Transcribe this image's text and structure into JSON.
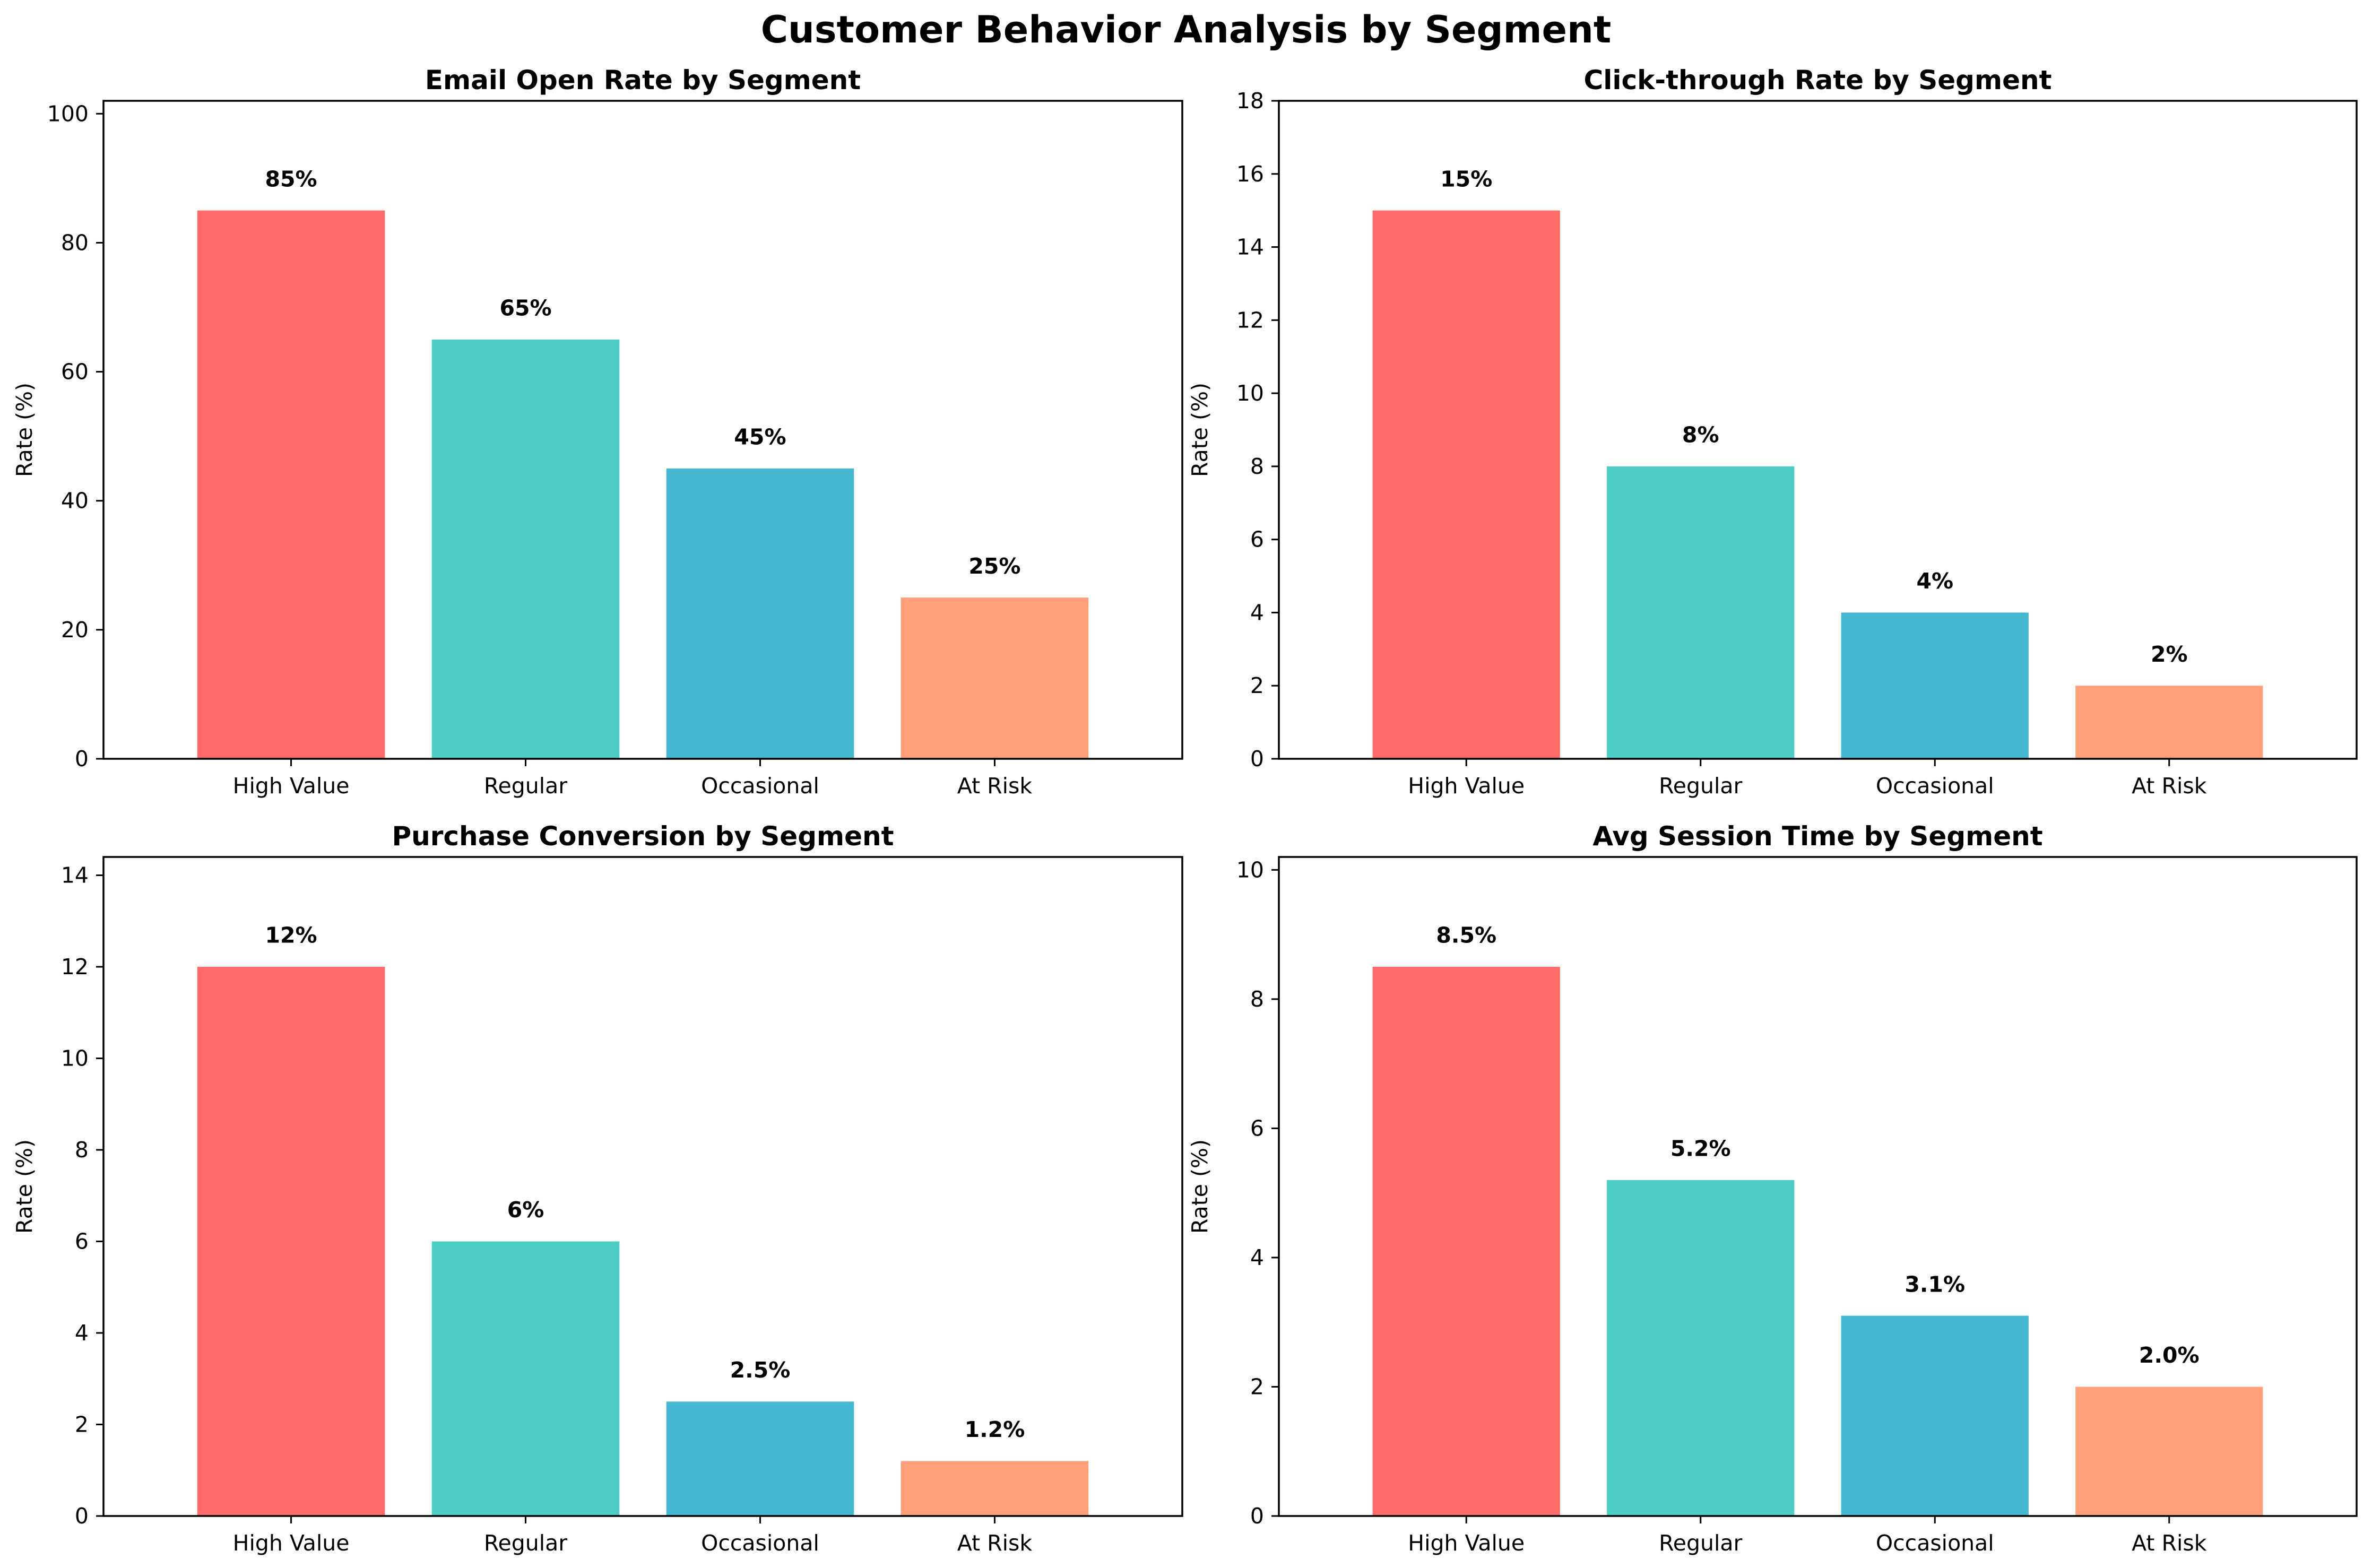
{
  "figure": {
    "title": "Customer Behavior Analysis by Segment"
  },
  "chart_data": [
    {
      "type": "bar",
      "title": "Email Open Rate by Segment",
      "xlabel": "",
      "ylabel": "Rate (%)",
      "categories": [
        "High Value",
        "Regular",
        "Occasional",
        "At Risk"
      ],
      "values": [
        85,
        65,
        45,
        25
      ],
      "value_labels": [
        "85%",
        "65%",
        "45%",
        "25%"
      ],
      "colors": [
        "#FF6B6B",
        "#4ECDC4",
        "#45B7D1",
        "#FFA07A"
      ],
      "ylim": [
        0,
        102
      ],
      "yticks": [
        0,
        20,
        40,
        60,
        80,
        100
      ],
      "grid": false,
      "legend": "none"
    },
    {
      "type": "bar",
      "title": "Click-through Rate by Segment",
      "xlabel": "",
      "ylabel": "Rate (%)",
      "categories": [
        "High Value",
        "Regular",
        "Occasional",
        "At Risk"
      ],
      "values": [
        15,
        8,
        4,
        2
      ],
      "value_labels": [
        "15%",
        "8%",
        "4%",
        "2%"
      ],
      "colors": [
        "#FF6B6B",
        "#4ECDC4",
        "#45B7D1",
        "#FFA07A"
      ],
      "ylim": [
        0,
        18
      ],
      "yticks": [
        0,
        2,
        4,
        6,
        8,
        10,
        12,
        14,
        16,
        18
      ],
      "grid": false,
      "legend": "none"
    },
    {
      "type": "bar",
      "title": "Purchase Conversion by Segment",
      "xlabel": "",
      "ylabel": "Rate (%)",
      "categories": [
        "High Value",
        "Regular",
        "Occasional",
        "At Risk"
      ],
      "values": [
        12,
        6,
        2.5,
        1.2
      ],
      "value_labels": [
        "12%",
        "6%",
        "2.5%",
        "1.2%"
      ],
      "colors": [
        "#FF6B6B",
        "#4ECDC4",
        "#45B7D1",
        "#FFA07A"
      ],
      "ylim": [
        0,
        14.4
      ],
      "yticks": [
        0,
        2,
        4,
        6,
        8,
        10,
        12,
        14
      ],
      "grid": false,
      "legend": "none"
    },
    {
      "type": "bar",
      "title": "Avg Session Time by Segment",
      "xlabel": "",
      "ylabel": "Rate (%)",
      "categories": [
        "High Value",
        "Regular",
        "Occasional",
        "At Risk"
      ],
      "values": [
        8.5,
        5.2,
        3.1,
        2.0
      ],
      "value_labels": [
        "8.5%",
        "5.2%",
        "3.1%",
        "2.0%"
      ],
      "colors": [
        "#FF6B6B",
        "#4ECDC4",
        "#45B7D1",
        "#FFA07A"
      ],
      "ylim": [
        0,
        10.2
      ],
      "yticks": [
        0,
        2,
        4,
        6,
        8,
        10
      ],
      "grid": false,
      "legend": "none"
    }
  ]
}
